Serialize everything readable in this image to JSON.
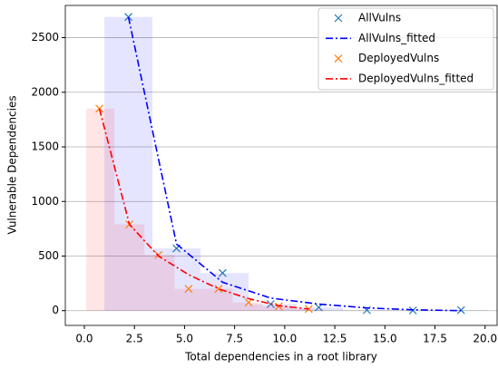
{
  "chart_data": {
    "type": "line",
    "xlabel": "Total dependencies in a root library",
    "ylabel": "Vulnerable Dependencies",
    "xlim": [
      -0.95,
      20.6
    ],
    "ylim": [
      -135,
      2795
    ],
    "xticks": [
      {
        "value": 0,
        "label": "0.0"
      },
      {
        "value": 2.5,
        "label": "2.5"
      },
      {
        "value": 5,
        "label": "5.0"
      },
      {
        "value": 7.5,
        "label": "7.5"
      },
      {
        "value": 10,
        "label": "10.0"
      },
      {
        "value": 12.5,
        "label": "12.5"
      },
      {
        "value": 15,
        "label": "15.0"
      },
      {
        "value": 17.5,
        "label": "17.5"
      },
      {
        "value": 20,
        "label": "20.0"
      }
    ],
    "yticks": [
      0,
      500,
      1000,
      1500,
      2000,
      2500
    ],
    "grid": true,
    "legend": "upper right",
    "histograms": [
      {
        "color": "#0000ff",
        "bins": [
          1.0,
          3.4,
          5.8,
          8.2,
          10.6,
          12.9,
          15.3,
          17.7,
          20.1
        ],
        "values": [
          2690,
          570,
          345,
          60,
          30,
          5,
          2,
          5
        ]
      },
      {
        "color": "#ff0000",
        "bins": [
          0.1,
          1.5,
          3.0,
          4.5,
          6.0,
          7.4,
          8.9,
          10.4,
          11.9
        ],
        "values": [
          1850,
          790,
          510,
          200,
          200,
          75,
          40,
          15
        ]
      }
    ],
    "series": [
      {
        "name": "AllVulns",
        "kind": "scatter",
        "marker": "x",
        "color": "#1f77b4",
        "x": [
          2.2,
          4.6,
          6.9,
          9.3,
          11.7,
          14.1,
          16.4,
          18.8
        ],
        "values": [
          2690,
          570,
          345,
          60,
          30,
          5,
          2,
          5
        ]
      },
      {
        "name": "AllVulns_fitted",
        "kind": "line",
        "linestyle": "-.",
        "color": "#0000ff",
        "x": [
          2.2,
          4.6,
          6.9,
          9.3,
          11.7,
          14.1,
          16.4,
          18.8
        ],
        "values": [
          2690,
          610,
          260,
          115,
          60,
          25,
          8,
          0
        ]
      },
      {
        "name": "DeployedVulns",
        "kind": "scatter",
        "marker": "x",
        "color": "#ff7f0e",
        "x": [
          0.75,
          2.25,
          3.7,
          5.2,
          6.7,
          8.2,
          9.7,
          11.2
        ],
        "values": [
          1850,
          790,
          510,
          200,
          200,
          75,
          40,
          15
        ]
      },
      {
        "name": "DeployedVulns_fitted",
        "kind": "line",
        "linestyle": "-.",
        "color": "#ff0000",
        "x": [
          0.75,
          2.25,
          3.7,
          5.2,
          6.7,
          8.2,
          9.7,
          11.2
        ],
        "values": [
          1850,
          790,
          500,
          330,
          200,
          110,
          45,
          15
        ]
      }
    ]
  }
}
